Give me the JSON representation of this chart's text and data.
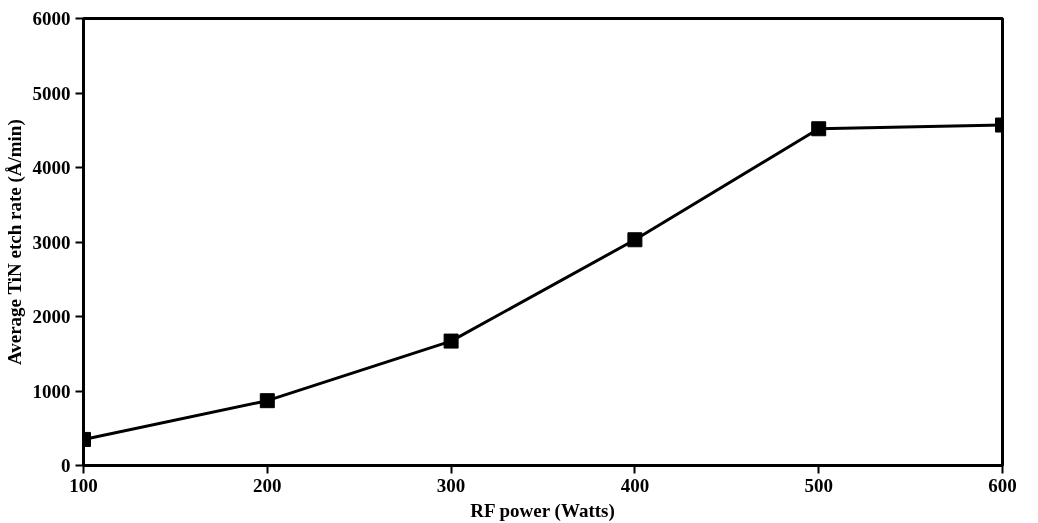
{
  "chart_data": {
    "type": "line",
    "xlabel": "RF power (Watts)",
    "ylabel": "Average TiN etch rate (Å/min)",
    "x": [
      100,
      200,
      300,
      400,
      500,
      600
    ],
    "series": [
      {
        "color": "#000000",
        "values": [
          350,
          870,
          1670,
          3030,
          4520,
          4570
        ]
      }
    ],
    "xlim": [
      100,
      600
    ],
    "xticks": [
      100,
      200,
      300,
      400,
      500,
      600
    ],
    "ylim": [
      0,
      6000
    ],
    "yticks": [
      0,
      1000,
      2000,
      3000,
      4000,
      5000,
      6000
    ],
    "grid": false,
    "marker": "square",
    "line_style": "solid"
  }
}
